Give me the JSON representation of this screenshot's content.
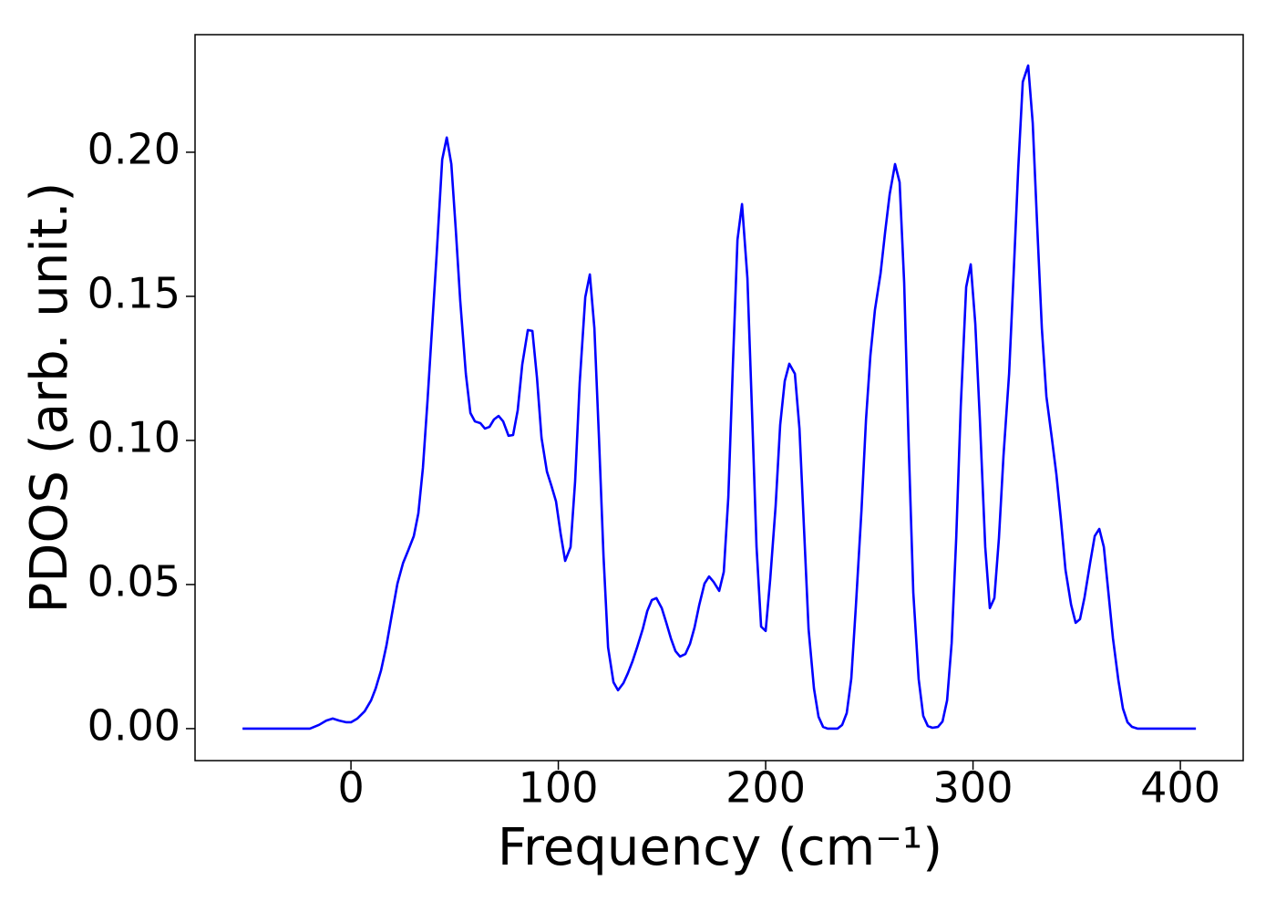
{
  "chart_data": {
    "type": "line",
    "xlabel": "Frequency (cm⁻¹)",
    "ylabel": "PDOS (arb. unit.)",
    "color": "#0000ff",
    "xlim": [
      -75.2,
      430.3
    ],
    "ylim": [
      -0.0111,
      0.2408
    ],
    "xticks": [
      0,
      100,
      200,
      300,
      400
    ],
    "yticks": [
      {
        "value": 0,
        "label": "0.00"
      },
      {
        "value": 0.05,
        "label": "0.05"
      },
      {
        "value": 0.1,
        "label": "0.10"
      },
      {
        "value": 0.15,
        "label": "0.15"
      },
      {
        "value": 0.2,
        "label": "0.20"
      }
    ],
    "x": [
      -52.3,
      -19.8,
      -15.4,
      -11.9,
      -8.8,
      -5.7,
      -2.2,
      0,
      3.1,
      6.6,
      9.7,
      11.9,
      14.5,
      17.1,
      19.8,
      22.4,
      25.1,
      27.7,
      30.3,
      32.5,
      34.7,
      36.9,
      39.1,
      41.3,
      44.0,
      46.2,
      48.4,
      50.5,
      52.7,
      55.4,
      57.6,
      59.8,
      62.4,
      64.6,
      66.8,
      69.0,
      71.2,
      73.4,
      76.0,
      78.2,
      80.4,
      82.6,
      85.3,
      87.5,
      89.7,
      91.9,
      94.5,
      96.7,
      98.9,
      101.1,
      103.3,
      105.9,
      108.1,
      110.3,
      113.0,
      115.2,
      117.4,
      119.6,
      121.8,
      124.0,
      126.6,
      128.8,
      131.4,
      133.6,
      135.8,
      138.0,
      140.7,
      142.9,
      145.1,
      147.3,
      149.9,
      152.1,
      154.3,
      156.5,
      158.7,
      161.3,
      163.5,
      165.7,
      167.9,
      170.5,
      172.7,
      174.9,
      177.6,
      179.8,
      182.0,
      184.2,
      186.4,
      188.6,
      191.2,
      193.4,
      195.6,
      197.8,
      200.0,
      202.2,
      204.8,
      207.0,
      209.2,
      211.4,
      214.1,
      216.3,
      218.5,
      220.7,
      223.3,
      225.5,
      227.7,
      229.9,
      234.7,
      236.9,
      239.1,
      241.3,
      243.5,
      246.2,
      248.4,
      250.5,
      252.7,
      255.4,
      257.6,
      259.8,
      262.4,
      264.6,
      266.8,
      269.0,
      271.2,
      273.8,
      276.0,
      278.2,
      280.4,
      283.1,
      285.3,
      287.5,
      289.7,
      291.9,
      294.1,
      296.7,
      298.9,
      301.1,
      303.3,
      305.9,
      308.1,
      310.3,
      312.5,
      314.7,
      317.4,
      319.6,
      321.8,
      324.0,
      326.6,
      328.8,
      331.0,
      333.2,
      335.4,
      338.0,
      340.2,
      342.4,
      344.6,
      347.3,
      349.5,
      351.6,
      353.8,
      356.5,
      358.7,
      360.9,
      363.1,
      365.3,
      367.5,
      370.1,
      372.3,
      374.5,
      376.7,
      379.3,
      407.5
    ],
    "values": [
      0,
      0,
      0.0013,
      0.0028,
      0.0035,
      0.0028,
      0.0022,
      0.0022,
      0.0035,
      0.006,
      0.0098,
      0.0139,
      0.0202,
      0.0288,
      0.0399,
      0.0503,
      0.0574,
      0.062,
      0.0668,
      0.0747,
      0.0905,
      0.1136,
      0.1389,
      0.1642,
      0.1975,
      0.2051,
      0.1959,
      0.1737,
      0.1484,
      0.1231,
      0.1095,
      0.1066,
      0.106,
      0.1041,
      0.1047,
      0.1073,
      0.1085,
      0.1066,
      0.1016,
      0.1019,
      0.1104,
      0.1263,
      0.1383,
      0.138,
      0.1218,
      0.1009,
      0.0892,
      0.0842,
      0.0788,
      0.0677,
      0.0582,
      0.063,
      0.0858,
      0.1199,
      0.1497,
      0.1576,
      0.1389,
      0.1009,
      0.0598,
      0.0282,
      0.0161,
      0.0133,
      0.0158,
      0.0193,
      0.0234,
      0.0282,
      0.0345,
      0.0408,
      0.0446,
      0.0453,
      0.0418,
      0.0367,
      0.0313,
      0.0269,
      0.025,
      0.0259,
      0.0294,
      0.0351,
      0.0427,
      0.0503,
      0.0528,
      0.0509,
      0.0478,
      0.0544,
      0.0804,
      0.1263,
      0.1696,
      0.182,
      0.1563,
      0.1104,
      0.063,
      0.0354,
      0.0339,
      0.0519,
      0.0772,
      0.1054,
      0.1206,
      0.1266,
      0.1231,
      0.1041,
      0.0693,
      0.0345,
      0.0139,
      0.0041,
      0.0006,
      0,
      0,
      0.0013,
      0.0054,
      0.0174,
      0.0424,
      0.0756,
      0.1073,
      0.1294,
      0.1453,
      0.1579,
      0.1722,
      0.1854,
      0.1959,
      0.1896,
      0.1547,
      0.0978,
      0.0472,
      0.0171,
      0.0044,
      0.0009,
      0.0003,
      0.0006,
      0.0025,
      0.0098,
      0.0297,
      0.0661,
      0.112,
      0.1532,
      0.1611,
      0.1405,
      0.1073,
      0.063,
      0.0418,
      0.0453,
      0.0661,
      0.0946,
      0.1231,
      0.1579,
      0.1943,
      0.2244,
      0.2301,
      0.2101,
      0.1737,
      0.1389,
      0.1152,
      0.1009,
      0.0883,
      0.0725,
      0.0551,
      0.043,
      0.0367,
      0.038,
      0.0456,
      0.0576,
      0.0668,
      0.0693,
      0.063,
      0.0472,
      0.0313,
      0.0168,
      0.007,
      0.0022,
      0.0006,
      0,
      0
    ]
  }
}
